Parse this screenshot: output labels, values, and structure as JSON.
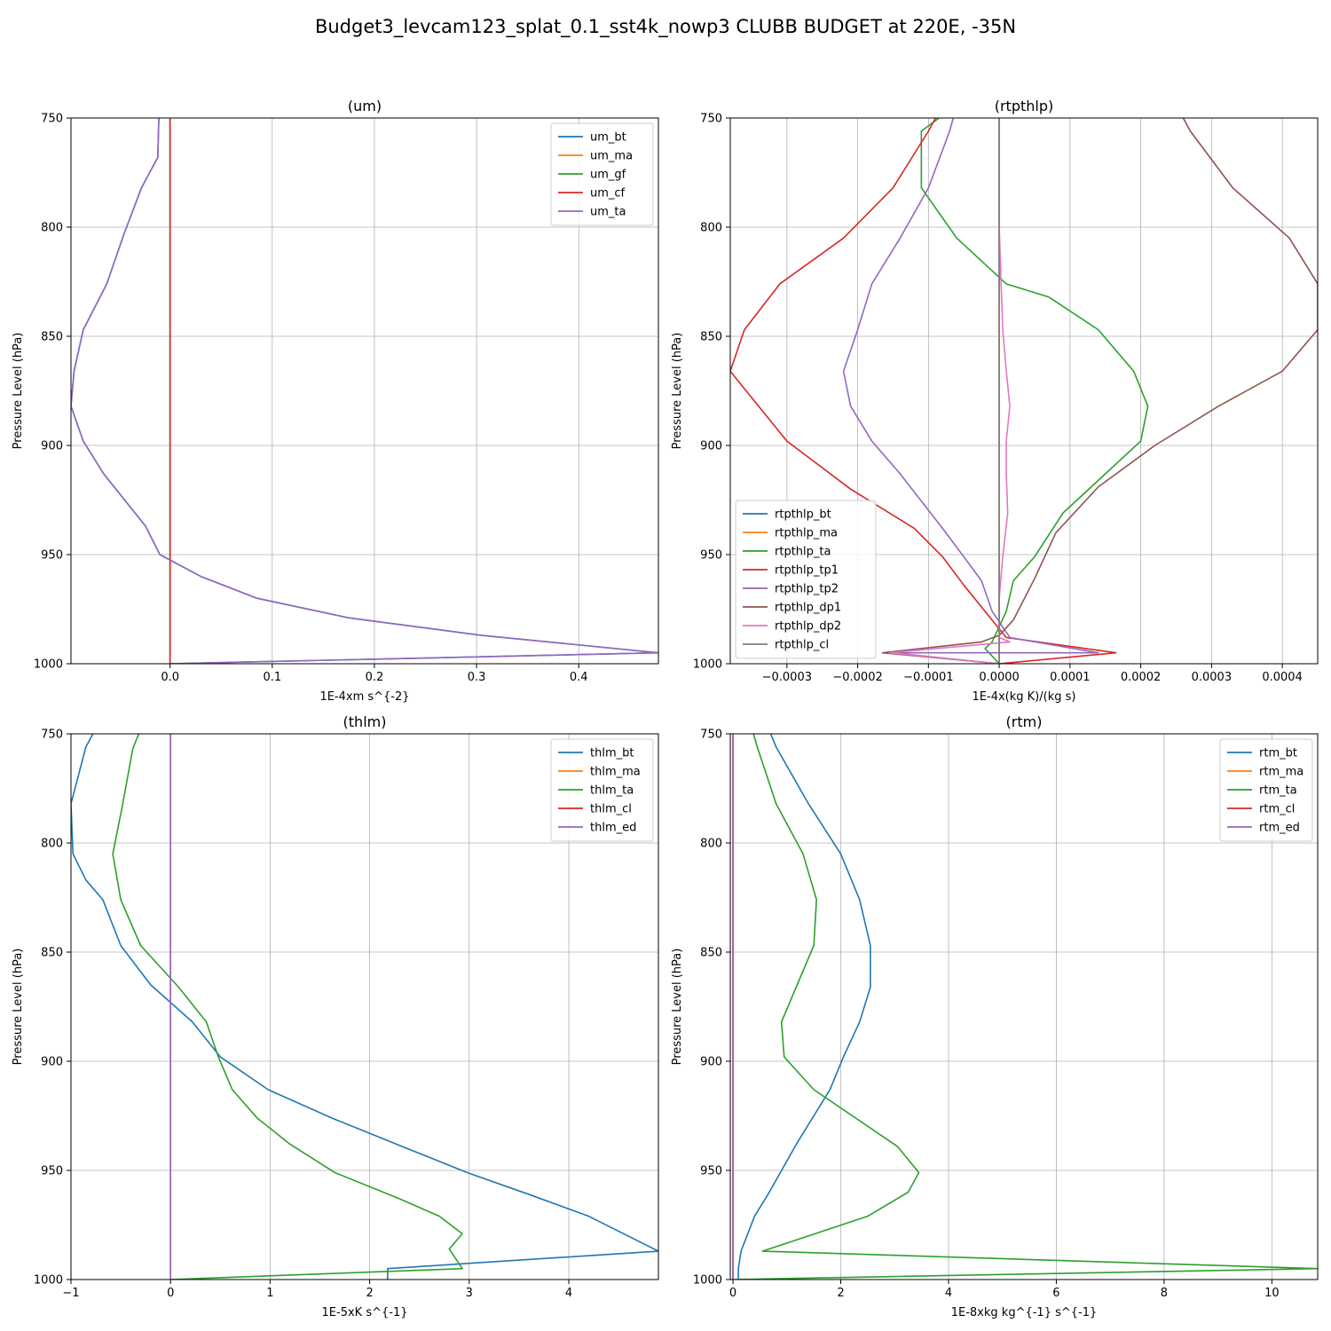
{
  "suptitle": "Budget3_levcam123_splat_0.1_sst4k_nowp3 CLUBB BUDGET at 220E, -35N",
  "colors": {
    "c0": "#1f77b4",
    "c1": "#ff7f0e",
    "c2": "#2ca02c",
    "c3": "#d62728",
    "c4": "#9467bd",
    "c5": "#8c564b",
    "c6": "#e377c2",
    "c7": "#7f7f7f"
  },
  "chart_data": [
    {
      "type": "line",
      "title": "(um)",
      "xlabel": "1E-4xm s^{-2}",
      "ylabel": "Pressure Level (hPa)",
      "xlim": [
        -0.097,
        0.478
      ],
      "ylim": [
        1000,
        750
      ],
      "xticks": [
        0.0,
        0.1,
        0.2,
        0.3,
        0.4
      ],
      "xtick_labels": [
        "0.0",
        "0.1",
        "0.2",
        "0.3",
        "0.4"
      ],
      "yticks": [
        750,
        800,
        850,
        900,
        950,
        1000
      ],
      "ytick_labels": [
        "750",
        "800",
        "850",
        "900",
        "950",
        "1000"
      ],
      "grid": true,
      "legend": "top-right",
      "series": [
        {
          "name": "um_bt",
          "color": "#1f77b4",
          "x": [
            -0.011,
            -0.012,
            -0.028,
            -0.045,
            -0.062,
            -0.085,
            -0.094,
            -0.097,
            -0.085,
            -0.065,
            -0.024,
            -0.01,
            0.03,
            0.085,
            0.175,
            0.305,
            0.478,
            0.0
          ],
          "y": [
            750,
            768,
            782,
            803,
            826,
            847,
            866,
            882,
            898,
            913,
            937,
            950,
            960,
            970,
            979,
            987,
            995,
            1000
          ]
        },
        {
          "name": "um_ma",
          "color": "#ff7f0e",
          "x": [
            0,
            0
          ],
          "y": [
            750,
            1000
          ]
        },
        {
          "name": "um_gf",
          "color": "#2ca02c",
          "x": [
            0,
            0
          ],
          "y": [
            750,
            1000
          ]
        },
        {
          "name": "um_cf",
          "color": "#d62728",
          "x": [
            0,
            0
          ],
          "y": [
            750,
            1000
          ]
        },
        {
          "name": "um_ta",
          "color": "#9467bd",
          "x": [
            -0.011,
            -0.012,
            -0.028,
            -0.045,
            -0.062,
            -0.085,
            -0.094,
            -0.097,
            -0.085,
            -0.065,
            -0.024,
            -0.01,
            0.03,
            0.085,
            0.175,
            0.305,
            0.478,
            0.0
          ],
          "y": [
            750,
            768,
            782,
            803,
            826,
            847,
            866,
            882,
            898,
            913,
            937,
            950,
            960,
            970,
            979,
            987,
            995,
            1000
          ]
        }
      ]
    },
    {
      "type": "line",
      "title": "(rtpthlp)",
      "xlabel": "1E-4x(kg K)/(kg s)",
      "ylabel": "Pressure Level (hPa)",
      "xlim": [
        -0.00038,
        0.00045
      ],
      "ylim": [
        1000,
        750
      ],
      "xticks": [
        -0.0003,
        -0.0002,
        -0.0001,
        0.0,
        0.0001,
        0.0002,
        0.0003,
        0.0004
      ],
      "xtick_labels": [
        "−0.0003",
        "−0.0002",
        "−0.0001",
        "0.0000",
        "0.0001",
        "0.0002",
        "0.0003",
        "0.0004"
      ],
      "yticks": [
        750,
        800,
        850,
        900,
        950,
        1000
      ],
      "ytick_labels": [
        "750",
        "800",
        "850",
        "900",
        "950",
        "1000"
      ],
      "grid": true,
      "legend": "bottom-left",
      "series": [
        {
          "name": "rtpthlp_bt",
          "color": "#1f77b4",
          "x": [
            0,
            0
          ],
          "y": [
            750,
            1000
          ]
        },
        {
          "name": "rtpthlp_ma",
          "color": "#ff7f0e",
          "x": [
            0,
            0
          ],
          "y": [
            750,
            1000
          ]
        },
        {
          "name": "rtpthlp_ta",
          "color": "#2ca02c",
          "x": [
            -8.5e-05,
            -0.00011,
            -0.00011,
            -6e-05,
            1e-05,
            7e-05,
            0.00014,
            0.00019,
            0.00021,
            0.0002,
            0.00015,
            9e-05,
            5e-05,
            2e-05,
            1e-05,
            -1e-05,
            -2e-05,
            0.0
          ],
          "y": [
            750,
            756,
            782,
            805,
            826,
            832,
            847,
            866,
            882,
            898,
            913,
            931,
            951,
            962,
            976,
            990,
            993,
            1000
          ]
        },
        {
          "name": "rtpthlp_tp1",
          "color": "#d62728",
          "x": [
            -9e-05,
            -0.0001,
            -0.00015,
            -0.00022,
            -0.00031,
            -0.00036,
            -0.00038,
            -0.00034,
            -0.0003,
            -0.00021,
            -0.00012,
            -8e-05,
            -5e-05,
            -2e-05,
            1e-05,
            0.000165,
            0.0
          ],
          "y": [
            750,
            756,
            782,
            805,
            826,
            847,
            866,
            882,
            898,
            920,
            938,
            951,
            964,
            976,
            988,
            995,
            1000
          ]
        },
        {
          "name": "rtpthlp_tp2",
          "color": "#9467bd",
          "x": [
            -6.5e-05,
            -7e-05,
            -0.0001,
            -0.00014,
            -0.00018,
            -0.0002,
            -0.00022,
            -0.00021,
            -0.00018,
            -0.00014,
            -8e-05,
            -5e-05,
            -2.5e-05,
            -1e-05,
            1.5e-05,
            0.00014,
            -0.00015,
            0.0
          ],
          "y": [
            750,
            756,
            782,
            805,
            826,
            847,
            866,
            882,
            898,
            913,
            938,
            951,
            962,
            976,
            988,
            995,
            995,
            1000
          ]
        },
        {
          "name": "rtpthlp_dp1",
          "color": "#8c564b",
          "x": [
            0.00026,
            0.00027,
            0.00033,
            0.00041,
            0.00045,
            0.00045,
            0.0004,
            0.00031,
            0.00022,
            0.00014,
            8e-05,
            5e-05,
            2e-05,
            0.0,
            -2.5e-05,
            -0.000165,
            0.0
          ],
          "y": [
            750,
            756,
            782,
            805,
            826,
            847,
            866,
            882,
            900,
            919,
            940,
            961,
            980,
            987,
            990,
            995,
            1000
          ]
        },
        {
          "name": "rtpthlp_dp2",
          "color": "#e377c2",
          "x": [
            0.0,
            0.0,
            5e-06,
            1e-05,
            1.5e-05,
            1e-05,
            1e-05,
            1.2e-05,
            5e-06,
            0.0,
            0.0,
            1.5e-05,
            -0.000155,
            0.0
          ],
          "y": [
            750,
            800,
            847,
            866,
            882,
            898,
            913,
            931,
            951,
            970,
            988,
            990,
            995,
            1000
          ]
        },
        {
          "name": "rtpthlp_cl",
          "color": "#7f7f7f",
          "x": [
            0,
            0
          ],
          "y": [
            750,
            1000
          ]
        }
      ]
    },
    {
      "type": "line",
      "title": "(thlm)",
      "xlabel": "1E-5xK s^{-1}",
      "ylabel": "Pressure Level (hPa)",
      "xlim": [
        -1.0,
        4.9
      ],
      "ylim": [
        1000,
        750
      ],
      "xticks": [
        -1,
        0,
        1,
        2,
        3,
        4
      ],
      "xtick_labels": [
        "−1",
        "0",
        "1",
        "2",
        "3",
        "4"
      ],
      "yticks": [
        750,
        800,
        850,
        900,
        950,
        1000
      ],
      "ytick_labels": [
        "750",
        "800",
        "850",
        "900",
        "950",
        "1000"
      ],
      "grid": true,
      "legend": "top-right",
      "series": [
        {
          "name": "thlm_bt",
          "color": "#1f77b4",
          "x": [
            -0.78,
            -0.85,
            -1.0,
            -0.98,
            -0.85,
            -0.68,
            -0.5,
            -0.2,
            0.22,
            0.5,
            0.98,
            1.62,
            2.27,
            2.98,
            3.6,
            4.2,
            4.9,
            2.18,
            2.18
          ],
          "y": [
            750,
            756,
            782,
            805,
            817,
            826,
            847,
            865,
            882,
            898,
            913,
            926,
            938,
            951,
            961,
            971,
            987,
            995,
            1000
          ]
        },
        {
          "name": "thlm_ma",
          "color": "#ff7f0e",
          "x": [
            0,
            0
          ],
          "y": [
            750,
            1000
          ]
        },
        {
          "name": "thlm_ta",
          "color": "#2ca02c",
          "x": [
            -0.32,
            -0.38,
            -0.48,
            -0.58,
            -0.5,
            -0.3,
            0.08,
            0.36,
            0.48,
            0.62,
            0.87,
            1.2,
            1.65,
            2.3,
            2.7,
            2.93,
            2.8,
            2.93,
            0.0
          ],
          "y": [
            750,
            757,
            782,
            805,
            826,
            847,
            866,
            882,
            898,
            913,
            926,
            938,
            951,
            963,
            971,
            979,
            986,
            995,
            1000
          ]
        },
        {
          "name": "thlm_cl",
          "color": "#d62728",
          "x": [
            0,
            0
          ],
          "y": [
            750,
            1000
          ]
        },
        {
          "name": "thlm_ed",
          "color": "#9467bd",
          "x": [
            0,
            0
          ],
          "y": [
            750,
            1000
          ]
        }
      ]
    },
    {
      "type": "line",
      "title": "(rtm)",
      "xlabel": "1E-8xkg kg^{-1} s^{-1}",
      "ylabel": "Pressure Level (hPa)",
      "xlim": [
        -0.05,
        10.85
      ],
      "ylim": [
        1000,
        750
      ],
      "xticks": [
        0,
        2,
        4,
        6,
        8,
        10
      ],
      "xtick_labels": [
        "0",
        "2",
        "4",
        "6",
        "8",
        "10"
      ],
      "yticks": [
        750,
        800,
        850,
        900,
        950,
        1000
      ],
      "ytick_labels": [
        "750",
        "800",
        "850",
        "900",
        "950",
        "1000"
      ],
      "grid": true,
      "legend": "top-right",
      "series": [
        {
          "name": "rtm_bt",
          "color": "#1f77b4",
          "x": [
            0.7,
            0.8,
            1.4,
            2.0,
            2.35,
            2.55,
            2.55,
            2.35,
            2.05,
            1.8,
            1.2,
            0.65,
            0.4,
            0.15,
            0.1,
            0.1
          ],
          "y": [
            750,
            756,
            782,
            805,
            826,
            847,
            866,
            882,
            898,
            913,
            937,
            961,
            971,
            987,
            995,
            1000
          ]
        },
        {
          "name": "rtm_ma",
          "color": "#ff7f0e",
          "x": [
            0,
            0
          ],
          "y": [
            750,
            1000
          ]
        },
        {
          "name": "rtm_ta",
          "color": "#2ca02c",
          "x": [
            0.38,
            0.45,
            0.8,
            1.3,
            1.55,
            1.5,
            0.9,
            0.95,
            1.5,
            3.05,
            3.45,
            3.25,
            2.5,
            0.55,
            10.85,
            0.0
          ],
          "y": [
            750,
            756,
            782,
            805,
            826,
            847,
            882,
            898,
            913,
            939,
            951,
            960,
            971,
            987,
            995,
            1000
          ]
        },
        {
          "name": "rtm_cl",
          "color": "#d62728",
          "x": [
            0,
            0
          ],
          "y": [
            750,
            1000
          ]
        },
        {
          "name": "rtm_ed",
          "color": "#9467bd",
          "x": [
            0,
            0
          ],
          "y": [
            750,
            1000
          ]
        }
      ]
    }
  ]
}
